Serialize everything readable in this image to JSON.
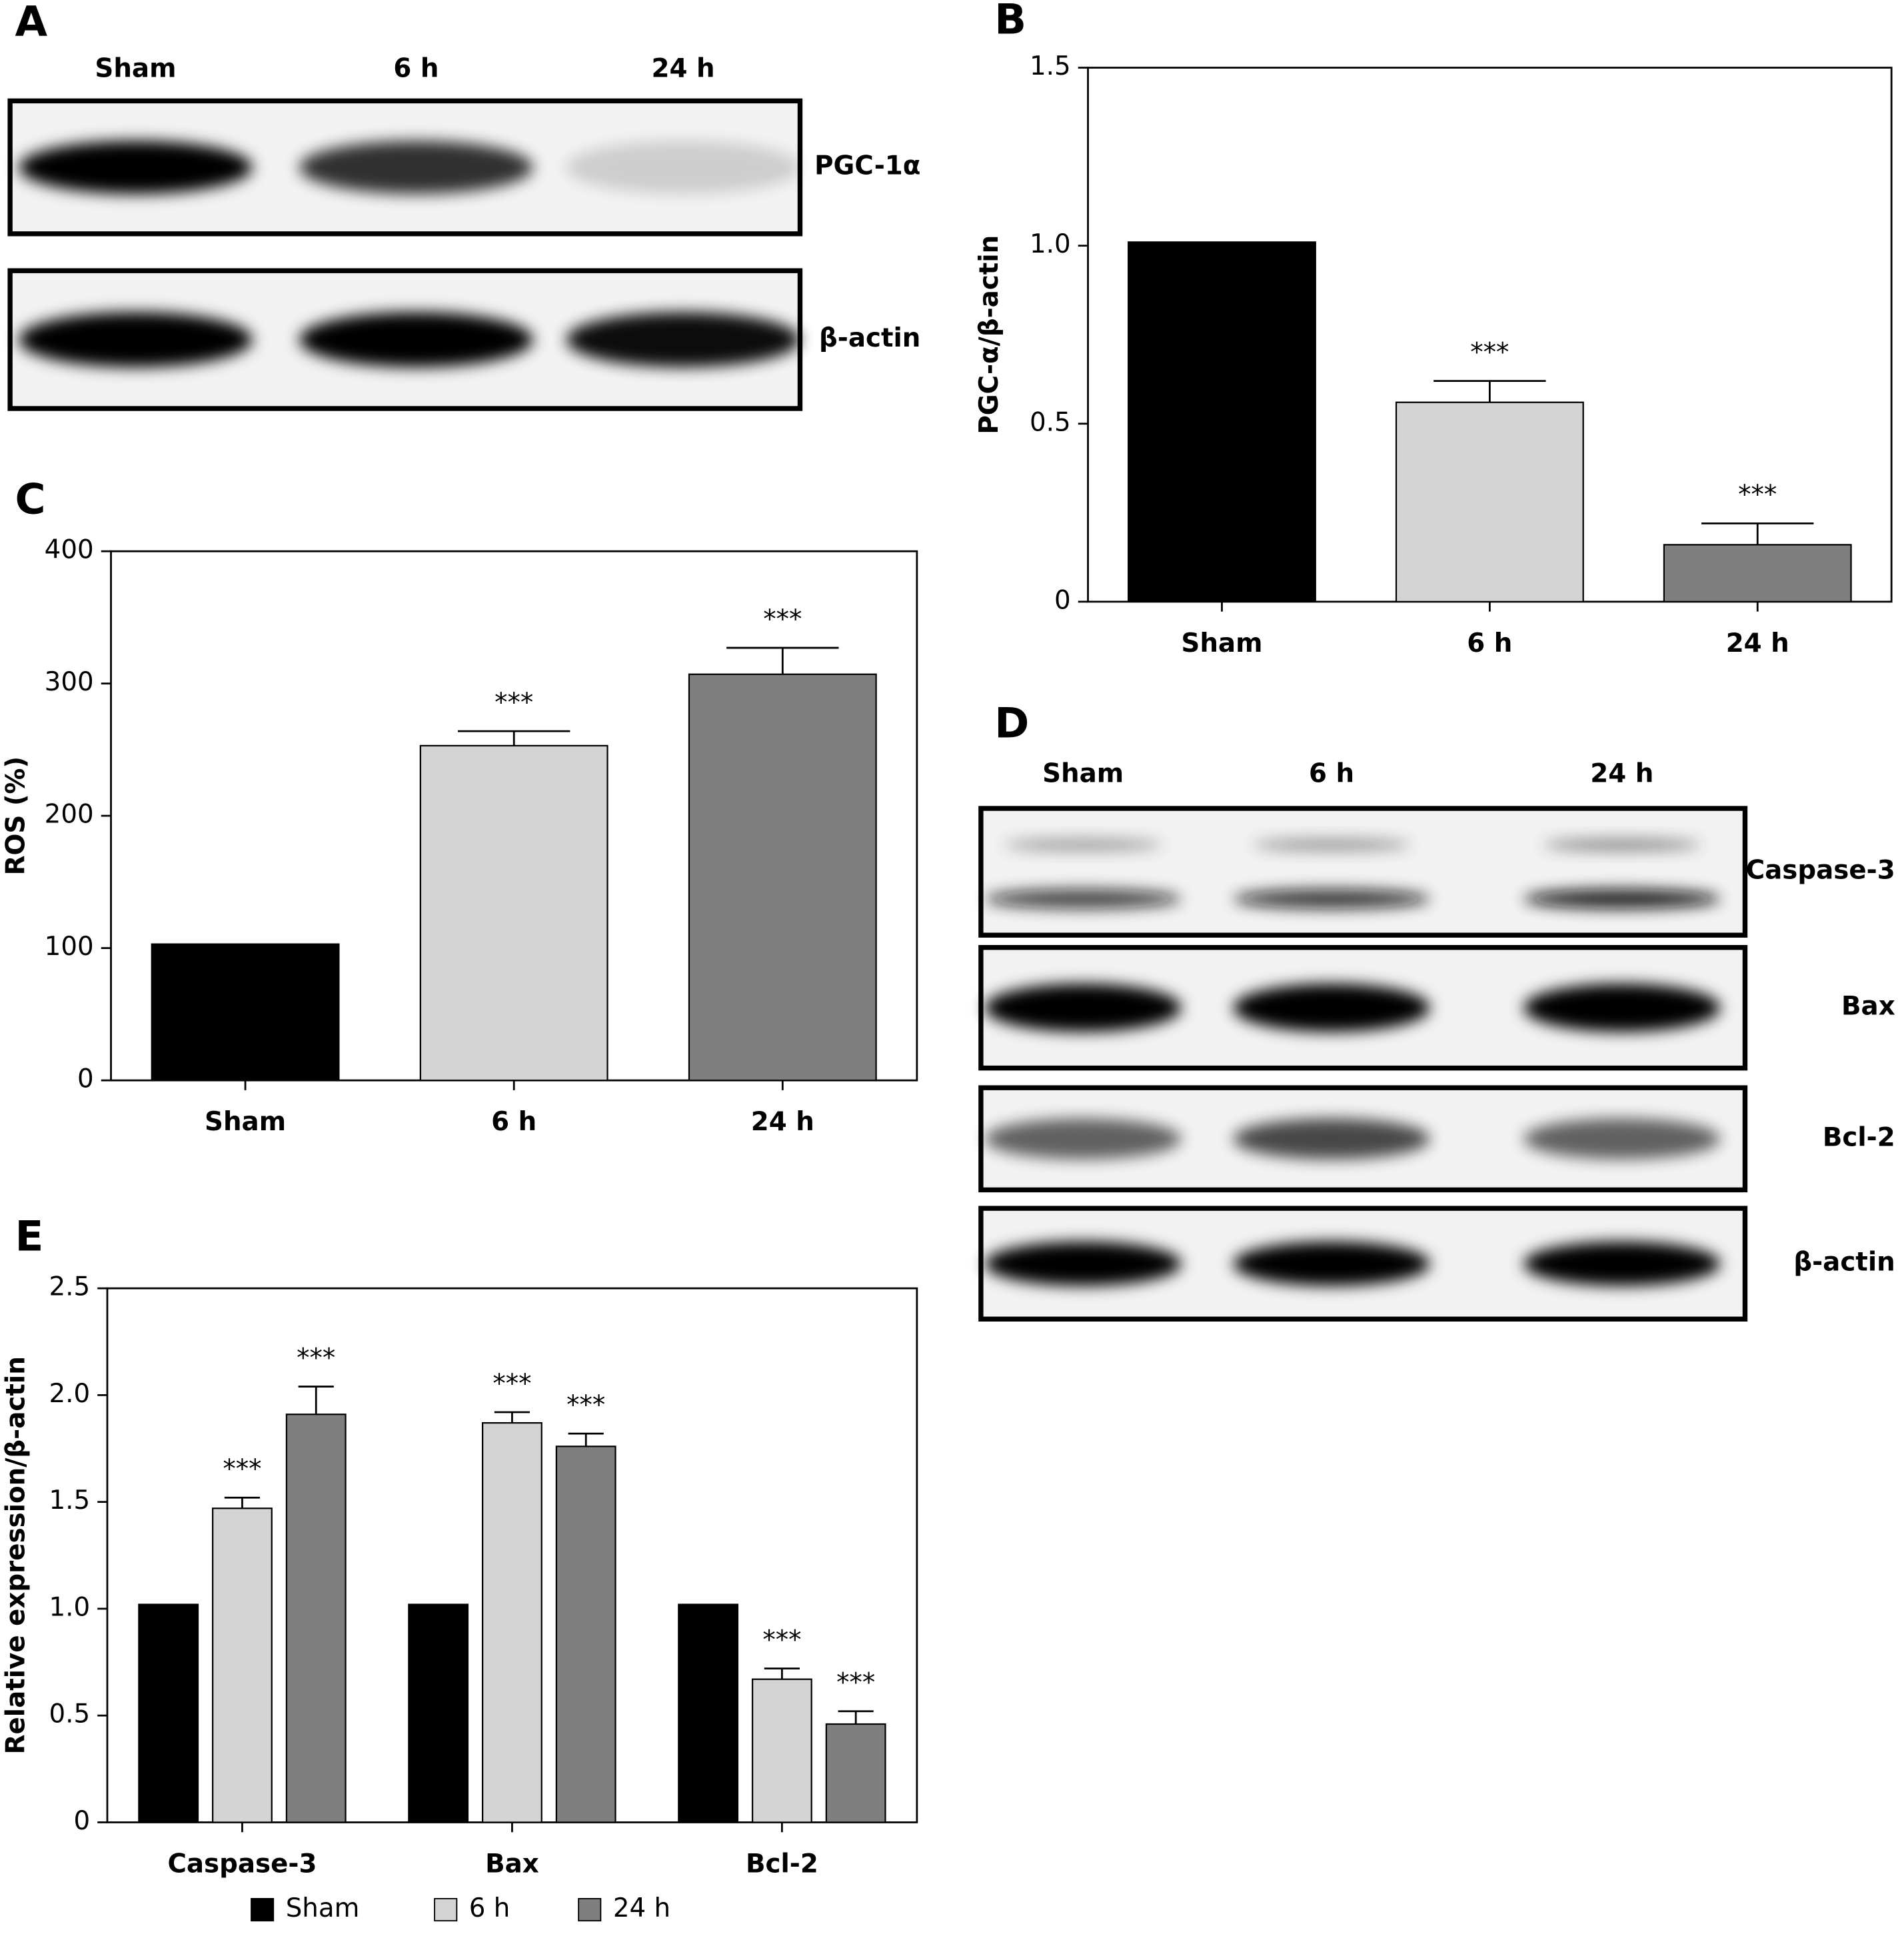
{
  "chart_data": [
    {
      "type": "bar",
      "panel_label": "B",
      "ylabel": "PGC-α/β-actin",
      "categories": [
        "Sham",
        "6 h",
        "24 h"
      ],
      "values": [
        1.01,
        0.56,
        0.16
      ],
      "errors": [
        null,
        0.06,
        0.06
      ],
      "annotations": [
        null,
        "***",
        "***"
      ],
      "colors": [
        "#000000",
        "#d4d4d4",
        "#7f7f7f"
      ],
      "ylim": [
        0,
        1.5
      ],
      "yticks": [
        0,
        0.5,
        {
          "value": 1,
          "label": "1.0"
        },
        1.5
      ]
    },
    {
      "type": "bar",
      "panel_label": "C",
      "ylabel": "ROS (%)",
      "categories": [
        "Sham",
        "6 h",
        "24 h"
      ],
      "values": [
        103,
        253,
        307
      ],
      "errors": [
        null,
        11,
        20
      ],
      "annotations": [
        null,
        "***",
        "***"
      ],
      "colors": [
        "#000000",
        "#d4d4d4",
        "#7f7f7f"
      ],
      "ylim": [
        0,
        400
      ],
      "yticks": [
        0,
        100,
        200,
        300,
        400
      ]
    },
    {
      "type": "bar",
      "panel_label": "E",
      "ylabel": "Relative expression/β-actin",
      "categories": [
        "Caspase-3",
        "Bax",
        "Bcl-2"
      ],
      "series": [
        {
          "name": "Sham",
          "color": "#000000",
          "values": [
            1.02,
            1.02,
            1.02
          ],
          "errors": [
            null,
            null,
            null
          ],
          "annotations": [
            null,
            null,
            null
          ]
        },
        {
          "name": "6 h",
          "color": "#d4d4d4",
          "values": [
            1.47,
            1.87,
            0.67
          ],
          "errors": [
            0.05,
            0.05,
            0.05
          ],
          "annotations": [
            "***",
            "***",
            "***"
          ]
        },
        {
          "name": "24 h",
          "color": "#7f7f7f",
          "values": [
            1.91,
            1.76,
            0.46
          ],
          "errors": [
            0.13,
            0.06,
            0.06
          ],
          "annotations": [
            "***",
            "***",
            "***"
          ]
        }
      ],
      "ylim": [
        0,
        2.5
      ],
      "yticks": [
        0,
        0.5,
        {
          "value": 1,
          "label": "1.0"
        },
        1.5,
        {
          "value": 2,
          "label": "2.0"
        },
        2.5
      ]
    }
  ],
  "blots": [
    {
      "panel_label": "A",
      "lanes": [
        "Sham",
        "6 h",
        "24 h"
      ],
      "bands": [
        "PGC-1α",
        "β-actin"
      ]
    },
    {
      "panel_label": "D",
      "lanes": [
        "Sham",
        "6 h",
        "24 h"
      ],
      "bands": [
        "Caspase-3",
        "Bax",
        "Bcl-2",
        "β-actin"
      ]
    }
  ]
}
